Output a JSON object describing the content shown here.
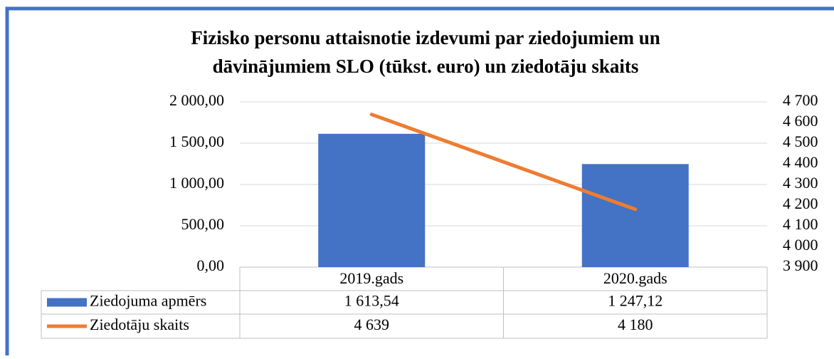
{
  "chart_data": {
    "type": "bar_line",
    "title": [
      "Fizisko personu attaisnotie izdevumi par ziedojumiem un",
      "dāvinājumiem SLO (tūkst. euro) un ziedotāju skaits"
    ],
    "categories": [
      "2019.gads",
      "2020.gads"
    ],
    "series": [
      {
        "name": "Ziedojuma apmērs",
        "type": "bar",
        "color": "#4472c4",
        "values": [
          1613.54,
          1247.12
        ],
        "value_labels": [
          "1 613,54",
          "1 247,12"
        ]
      },
      {
        "name": "Ziedotāju skaits",
        "type": "line",
        "color": "#ed7d31",
        "axis": "y2",
        "values": [
          4639,
          4180
        ],
        "value_labels": [
          "4 639",
          "4 180"
        ]
      }
    ],
    "ylim": [
      0,
      2000
    ],
    "yticks": [
      {
        "value": 0,
        "label": "0,00"
      },
      {
        "value": 500,
        "label": "500,00"
      },
      {
        "value": 1000,
        "label": "1 000,00"
      },
      {
        "value": 1500,
        "label": "1 500,00"
      },
      {
        "value": 2000,
        "label": "2 000,00"
      }
    ],
    "y2lim": [
      3900,
      4700
    ],
    "y2ticks": [
      {
        "value": 3900,
        "label": "3 900"
      },
      {
        "value": 4000,
        "label": "4 000"
      },
      {
        "value": 4100,
        "label": "4 100"
      },
      {
        "value": 4200,
        "label": "4 200"
      },
      {
        "value": 4300,
        "label": "4 300"
      },
      {
        "value": 4400,
        "label": "4 400"
      },
      {
        "value": 4500,
        "label": "4 500"
      },
      {
        "value": 4600,
        "label": "4 600"
      },
      {
        "value": 4700,
        "label": "4 700"
      }
    ],
    "grid": true,
    "data_table": true
  }
}
